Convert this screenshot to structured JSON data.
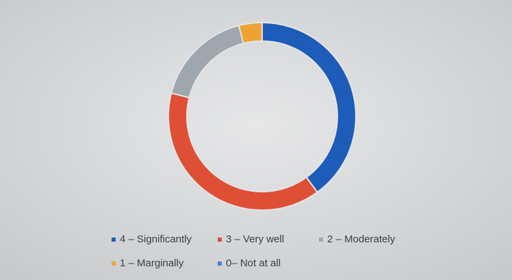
{
  "chart_data": {
    "type": "pie",
    "donut": true,
    "categories": [
      "4 – Significantly",
      "3 – Very well",
      "2 – Moderately",
      "1 – Marginally",
      "0– Not at all"
    ],
    "values": [
      40,
      39,
      17,
      4,
      0
    ],
    "colors": [
      "#1d5cb8",
      "#de4f35",
      "#9ea6ae",
      "#eea232",
      "#3f86d6"
    ]
  }
}
